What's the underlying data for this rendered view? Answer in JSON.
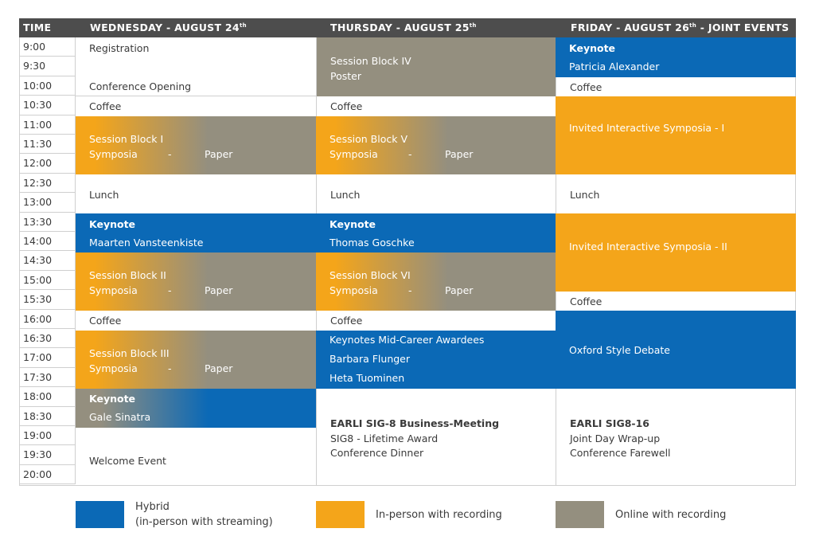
{
  "colors": {
    "hybrid": "#0b69b6",
    "in_person": "#f4a51a",
    "online": "#948f7f",
    "header": "#4d4d4d"
  },
  "header": {
    "time": "TIME",
    "wed": {
      "text": "WEDNESDAY - AUGUST 24",
      "sup": "th"
    },
    "thu": {
      "text": "THURSDAY - AUGUST 25",
      "sup": "th"
    },
    "fri": {
      "text": "FRIDAY - AUGUST 26",
      "sup": "th",
      "suffix": " - JOINT EVENTS"
    }
  },
  "times": [
    "9:00",
    "9:30",
    "10:00",
    "10:30",
    "11:00",
    "11:30",
    "12:00",
    "12:30",
    "13:00",
    "13:30",
    "14:00",
    "14:30",
    "15:00",
    "15:30",
    "16:00",
    "16:30",
    "17:00",
    "17:30",
    "18:00",
    "18:30",
    "19:00",
    "19:30",
    "20:00"
  ],
  "wed": {
    "registration": "Registration",
    "opening": "Conference Opening",
    "coffee1": "Coffee",
    "sb1_title": "Session Block  I",
    "sb1_left": "Symposia",
    "sb1_dash": "-",
    "sb1_right": "Paper",
    "lunch": "Lunch",
    "keynote_label": "Keynote",
    "keynote_name": "Maarten Vansteenkiste",
    "sb2_title": "Session Block II",
    "sb2_left": "Symposia",
    "sb2_dash": "-",
    "sb2_right": "Paper",
    "coffee2": "Coffee",
    "sb3_title": "Session Block III",
    "sb3_left": "Symposia",
    "sb3_dash": "-",
    "sb3_right": "Paper",
    "keynote2_label": "Keynote",
    "keynote2_name": "Gale Sinatra",
    "welcome": "Welcome Event"
  },
  "thu": {
    "sb4_title": "Session Block IV",
    "sb4_sub": "Poster",
    "coffee1": "Coffee",
    "sb5_title": "Session Block V",
    "sb5_left": "Symposia",
    "sb5_dash": "-",
    "sb5_right": "Paper",
    "lunch": "Lunch",
    "keynote_label": "Keynote",
    "keynote_name": "Thomas Goschke",
    "sb6_title": "Session Block VI",
    "sb6_left": "Symposia",
    "sb6_dash": "-",
    "sb6_right": "Paper",
    "coffee2": "Coffee",
    "mid_title": "Keynotes Mid-Career Awardees",
    "mid_name1": "Barbara Flunger",
    "mid_name2": "Heta Tuominen",
    "biz_title": "EARLI SIG-8  Business-Meeting",
    "biz_line2": "SIG8 - Lifetime Award",
    "biz_line3": "Conference Dinner"
  },
  "fri": {
    "keynote_label": "Keynote",
    "keynote_name": "Patricia Alexander",
    "coffee1": "Coffee",
    "invited1": "Invited Interactive Symposia - I",
    "lunch": "Lunch",
    "invited2": "Invited Interactive Symposia - II",
    "coffee2": "Coffee",
    "debate": "Oxford Style Debate",
    "sig_title": "EARLI SIG8-16",
    "sig_line2": "Joint Day Wrap-up",
    "sig_line3": "Conference Farewell"
  },
  "legend": {
    "hybrid_title": "Hybrid",
    "hybrid_sub": "(in-person with streaming)",
    "in_person": "In-person with recording",
    "online": "Online with recording"
  }
}
